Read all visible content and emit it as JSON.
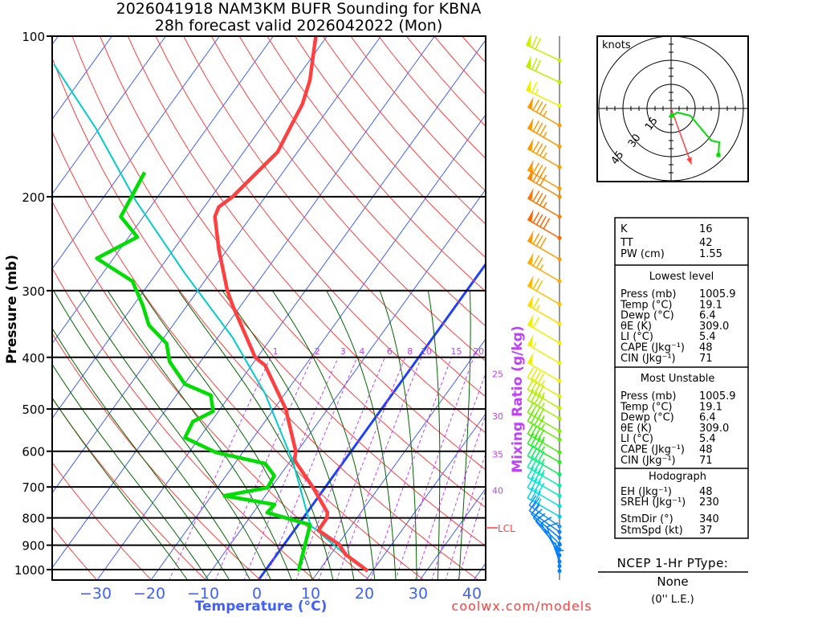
{
  "header": {
    "title_line1": "2026041918 NAM3KM BUFR Sounding for KBNA",
    "title_line2": "28h forecast valid 2026042022 (Mon)"
  },
  "colors": {
    "temperature": "#ff4040",
    "dewpoint": "#00dd00",
    "parcel": "#00cccc",
    "isotherm": "#4060ff",
    "dry_adiabat": "#ff4040",
    "moist_adiabat": "#006600",
    "mixing_ratio": "#c040ff"
  },
  "chart_data": {
    "type": "line",
    "title": "Skew-T log-P sounding",
    "xlabel": "Temperature (°C)",
    "ylabel": "Pressure (mb)",
    "y2label": "Mixing Ratio (g/kg)",
    "ylim": [
      1050,
      100
    ],
    "pressure_ticks": [
      "100",
      "200",
      "300",
      "400",
      "500",
      "600",
      "700",
      "800",
      "900",
      "1000"
    ],
    "pressure_tick_values": [
      100,
      200,
      300,
      400,
      500,
      600,
      700,
      800,
      900,
      1000
    ],
    "temperature_ticks": [
      "−30",
      "−20",
      "−10",
      "0",
      "10",
      "20",
      "30",
      "40"
    ],
    "temperature_tick_values": [
      -30,
      -20,
      -10,
      0,
      10,
      20,
      30,
      40
    ],
    "mixing_ratio_labels": [
      "1",
      "2",
      "3",
      "4",
      "6",
      "8",
      "10",
      "15",
      "20",
      "25",
      "30",
      "35",
      "40"
    ],
    "mixing_ratio_values": [
      1,
      2,
      3,
      4,
      6,
      8,
      10,
      15,
      20,
      25,
      30,
      35,
      40
    ],
    "lcl_label": "LCL",
    "lcl_pressure": 835,
    "series": [
      {
        "name": "Temperature",
        "points": [
          [
            1005.9,
            19.1
          ],
          [
            936,
            12.7
          ],
          [
            898,
            10.3
          ],
          [
            844,
            4.5
          ],
          [
            800,
            4.4
          ],
          [
            782,
            3.8
          ],
          [
            702,
            -2.2
          ],
          [
            624,
            -9.3
          ],
          [
            600,
            -10.3
          ],
          [
            500,
            -17.8
          ],
          [
            414,
            -27.5
          ],
          [
            400,
            -30.4
          ],
          [
            320,
            -41.5
          ],
          [
            300,
            -44.5
          ],
          [
            251,
            -51.6
          ],
          [
            218,
            -56.7
          ],
          [
            209,
            -57.3
          ],
          [
            200,
            -56.1
          ],
          [
            180,
            -54.8
          ],
          [
            165,
            -53.7
          ],
          [
            149,
            -54.6
          ],
          [
            134,
            -55.5
          ],
          [
            121,
            -57.3
          ],
          [
            100,
            -62.1
          ]
        ]
      },
      {
        "name": "Dewpoint",
        "points": [
          [
            1005.9,
            6.4
          ],
          [
            1000,
            6.1
          ],
          [
            824,
            2.2
          ],
          [
            782,
            -7.4
          ],
          [
            755,
            -7.1
          ],
          [
            727,
            -17.6
          ],
          [
            702,
            -10.7
          ],
          [
            667,
            -11.0
          ],
          [
            633,
            -14.3
          ],
          [
            603,
            -25.0
          ],
          [
            566,
            -32.7
          ],
          [
            528,
            -33.4
          ],
          [
            505,
            -31.0
          ],
          [
            471,
            -33.6
          ],
          [
            449,
            -39.9
          ],
          [
            407,
            -45.8
          ],
          [
            377,
            -48.7
          ],
          [
            348,
            -54.5
          ],
          [
            320,
            -58.2
          ],
          [
            288,
            -63.4
          ],
          [
            261,
            -73.1
          ],
          [
            238,
            -68.4
          ],
          [
            218,
            -74.2
          ],
          [
            180,
            -75.7
          ]
        ]
      },
      {
        "name": "Parcel",
        "points": [
          [
            1005.9,
            19.1
          ],
          [
            936,
            12.6
          ],
          [
            835,
            3.3
          ],
          [
            829,
            2.5
          ],
          [
            628,
            -9.4
          ],
          [
            468,
            -23.7
          ],
          [
            367,
            -37.3
          ],
          [
            278,
            -54.8
          ],
          [
            204,
            -73.4
          ],
          [
            149,
            -90.6
          ],
          [
            113,
            -107
          ]
        ]
      }
    ],
    "wind_barbs": [
      {
        "p": 111,
        "dir": 295,
        "spd": 70,
        "color": "#c8f000"
      },
      {
        "p": 122,
        "dir": 295,
        "spd": 70,
        "color": "#b8f000"
      },
      {
        "p": 135,
        "dir": 295,
        "spd": 65,
        "color": "#f0f000"
      },
      {
        "p": 147,
        "dir": 300,
        "spd": 85,
        "color": "#ff9900"
      },
      {
        "p": 161,
        "dir": 300,
        "spd": 85,
        "color": "#ff9900"
      },
      {
        "p": 176,
        "dir": 300,
        "spd": 85,
        "color": "#ff9900"
      },
      {
        "p": 193,
        "dir": 300,
        "spd": 80,
        "color": "#ff9900"
      },
      {
        "p": 200,
        "dir": 300,
        "spd": 80,
        "color": "#ff8800"
      },
      {
        "p": 218,
        "dir": 300,
        "spd": 85,
        "color": "#ff7700"
      },
      {
        "p": 239,
        "dir": 300,
        "spd": 90,
        "color": "#ff6600"
      },
      {
        "p": 262,
        "dir": 300,
        "spd": 80,
        "color": "#ff9900"
      },
      {
        "p": 288,
        "dir": 300,
        "spd": 75,
        "color": "#ffaa00"
      },
      {
        "p": 318,
        "dir": 300,
        "spd": 70,
        "color": "#ffbb00"
      },
      {
        "p": 346,
        "dir": 300,
        "spd": 65,
        "color": "#ffdd00"
      },
      {
        "p": 376,
        "dir": 300,
        "spd": 60,
        "color": "#f0f000"
      },
      {
        "p": 410,
        "dir": 300,
        "spd": 55,
        "color": "#f0f000"
      },
      {
        "p": 443,
        "dir": 300,
        "spd": 50,
        "color": "#f0f000"
      },
      {
        "p": 473,
        "dir": 300,
        "spd": 45,
        "color": "#e0f000"
      },
      {
        "p": 498,
        "dir": 300,
        "spd": 45,
        "color": "#c0f000"
      },
      {
        "p": 521,
        "dir": 300,
        "spd": 45,
        "color": "#a0f000"
      },
      {
        "p": 550,
        "dir": 300,
        "spd": 45,
        "color": "#80f000"
      },
      {
        "p": 571,
        "dir": 300,
        "spd": 45,
        "color": "#60f000"
      },
      {
        "p": 603,
        "dir": 300,
        "spd": 45,
        "color": "#40f000"
      },
      {
        "p": 629,
        "dir": 300,
        "spd": 45,
        "color": "#20f020"
      },
      {
        "p": 663,
        "dir": 300,
        "spd": 45,
        "color": "#00f060"
      },
      {
        "p": 696,
        "dir": 300,
        "spd": 45,
        "color": "#00f0a0"
      },
      {
        "p": 727,
        "dir": 300,
        "spd": 40,
        "color": "#00f0c0"
      },
      {
        "p": 760,
        "dir": 300,
        "spd": 40,
        "color": "#00e0e0"
      },
      {
        "p": 795,
        "dir": 300,
        "spd": 35,
        "color": "#00d0f0"
      },
      {
        "p": 830,
        "dir": 305,
        "spd": 25,
        "color": "#2090ff"
      },
      {
        "p": 850,
        "dir": 305,
        "spd": 20,
        "color": "#1080ff"
      },
      {
        "p": 872,
        "dir": 310,
        "spd": 15,
        "color": "#0080ff"
      },
      {
        "p": 895,
        "dir": 315,
        "spd": 15,
        "color": "#0080ff"
      },
      {
        "p": 917,
        "dir": 320,
        "spd": 10,
        "color": "#0080ff"
      },
      {
        "p": 940,
        "dir": 330,
        "spd": 10,
        "color": "#0080ff"
      },
      {
        "p": 966,
        "dir": 340,
        "spd": 10,
        "color": "#0080ff"
      },
      {
        "p": 985,
        "dir": 350,
        "spd": 5,
        "color": "#0080ff"
      },
      {
        "p": 1006,
        "dir": 355,
        "spd": 5,
        "color": "#0080ff"
      }
    ],
    "hodograph": {
      "units_label": "knots",
      "ring_labels": [
        "15",
        "30",
        "45"
      ],
      "ring_values": [
        15,
        30,
        45
      ],
      "uv_points": [
        [
          0.5,
          -4.5
        ],
        [
          4,
          -2.5
        ],
        [
          12,
          -4.5
        ],
        [
          25,
          -20
        ],
        [
          30,
          -21
        ],
        [
          29.5,
          -29
        ]
      ],
      "storm_motion": {
        "dir": 340,
        "spd": 37
      }
    }
  },
  "stats": {
    "indices": [
      {
        "label": "K",
        "value": "16"
      },
      {
        "label": "TT",
        "value": "42"
      },
      {
        "label": "PW (cm)",
        "value": "1.55"
      }
    ],
    "lowest_level": {
      "heading": "Lowest level",
      "rows": [
        {
          "label": "Press (mb)",
          "value": "1005.9"
        },
        {
          "label": "Temp (°C)",
          "value": "19.1"
        },
        {
          "label": "Dewp (°C)",
          "value": "6.4"
        },
        {
          "label": "θE (K)",
          "value": "309.0"
        },
        {
          "label": "LI (°C)",
          "value": "5.4"
        },
        {
          "label": "CAPE (Jkg⁻¹)",
          "value": "48"
        },
        {
          "label": "CIN (Jkg⁻¹)",
          "value": "71"
        }
      ]
    },
    "most_unstable": {
      "heading": "Most Unstable",
      "rows": [
        {
          "label": "Press (mb)",
          "value": "1005.9"
        },
        {
          "label": "Temp (°C)",
          "value": "19.1"
        },
        {
          "label": "Dewp (°C)",
          "value": "6.4"
        },
        {
          "label": "θE (K)",
          "value": "309.0"
        },
        {
          "label": "LI (°C)",
          "value": "5.4"
        },
        {
          "label": "CAPE (Jkg⁻¹)",
          "value": "48"
        },
        {
          "label": "CIN (Jkg⁻¹)",
          "value": "71"
        }
      ]
    },
    "hodograph": {
      "heading": "Hodograph",
      "rows": [
        {
          "label": "EH (Jkg⁻¹)",
          "value": "48"
        },
        {
          "label": "SREH (Jkg⁻¹)",
          "value": "230"
        },
        {
          "label": "StmDir (°)",
          "value": "340"
        },
        {
          "label": "StmSpd (kt)",
          "value": "37"
        }
      ]
    }
  },
  "ptype": {
    "heading": "NCEP 1-Hr PType:",
    "value": "None",
    "liquid_equiv": "(0'' L.E.)"
  },
  "footer": {
    "credit": "coolwx.com/models"
  }
}
